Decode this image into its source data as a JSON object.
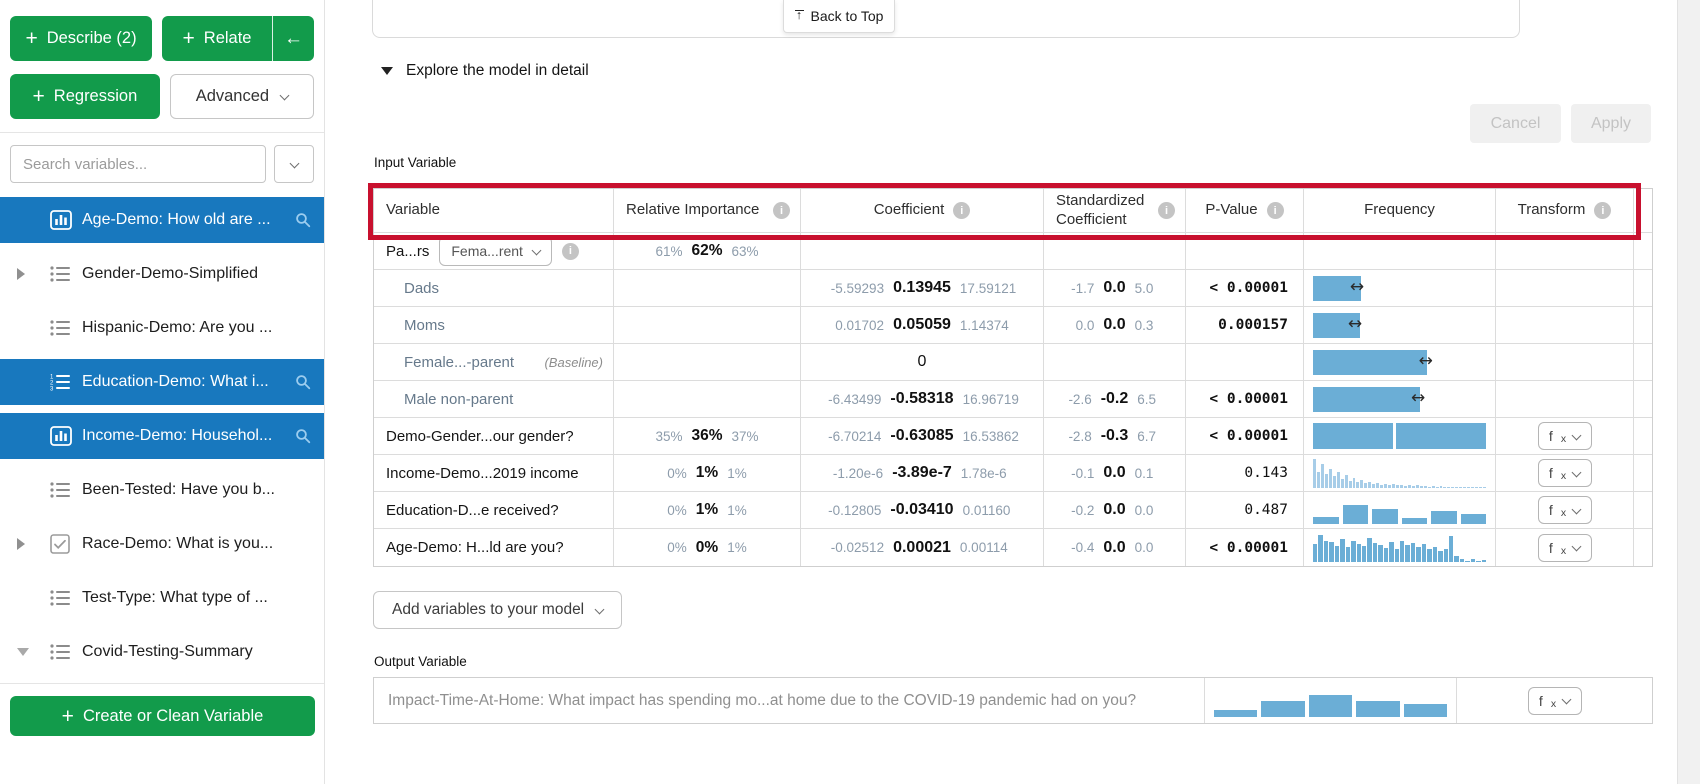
{
  "icons": {
    "plus": "+",
    "left_arrow": "←",
    "up_arrow": "↑",
    "double_arrow": "↔",
    "info": "i"
  },
  "sidebar": {
    "describe_label": "Describe (2)",
    "relate_label": "Relate",
    "regression_label": "Regression",
    "advanced_label": "Advanced",
    "search_placeholder": "Search variables...",
    "create_label": "Create or Clean Variable",
    "items": [
      {
        "label": "Age-Demo: How old are ..."
      },
      {
        "label": "Gender-Demo-Simplified"
      },
      {
        "label": "Hispanic-Demo: Are you ..."
      },
      {
        "label": "Education-Demo: What i..."
      },
      {
        "label": "Income-Demo: Househol..."
      },
      {
        "label": "Been-Tested: Have you b..."
      },
      {
        "label": "Race-Demo: What is you..."
      },
      {
        "label": "Test-Type: What type of ..."
      },
      {
        "label": "Covid-Testing-Summary"
      }
    ]
  },
  "header": {
    "back_to_top": "Back to Top",
    "section_title": "Explore the model in detail",
    "cancel_label": "Cancel",
    "apply_label": "Apply"
  },
  "table": {
    "section_label": "Input Variable",
    "fx": {
      "f": "f",
      "x": "x"
    },
    "columns": [
      "Variable",
      "Relative Importance",
      "Coefficient",
      "Standardized Coefficient",
      "P-Value",
      "Frequency",
      "Transform"
    ],
    "rows": [
      {
        "variable": "Pa...rs",
        "dropdown_value": "Fema...rent",
        "rel": {
          "low": "61%",
          "mid": "62%",
          "high": "63%"
        }
      },
      {
        "variable": "Dads",
        "coef": {
          "low": "-5.59293",
          "mid": "0.13945",
          "high": "17.59121"
        },
        "std": {
          "low": "-1.7",
          "mid": "0.0",
          "high": "5.0"
        },
        "p_value": "< 0.00001",
        "freq": {
          "kind": "bar",
          "bar_pct": 28,
          "arrow_pct": 24
        }
      },
      {
        "variable": "Moms",
        "coef": {
          "low": "0.01702",
          "mid": "0.05059",
          "high": "1.14374"
        },
        "std": {
          "low": "0.0",
          "mid": "0.0",
          "high": "0.3"
        },
        "p_value": "0.000157",
        "freq": {
          "kind": "bar",
          "bar_pct": 27,
          "arrow_pct": 23
        }
      },
      {
        "variable": "Female...-parent",
        "baseline_label": "(Baseline)",
        "coef_single": "0",
        "freq": {
          "kind": "bar",
          "bar_pct": 66,
          "arrow_pct": 60
        }
      },
      {
        "variable": "Male non-parent",
        "coef": {
          "low": "-6.43499",
          "mid": "-0.58318",
          "high": "16.96719"
        },
        "std": {
          "low": "-2.6",
          "mid": "-0.2",
          "high": "6.5"
        },
        "p_value": "< 0.00001",
        "freq": {
          "kind": "bar",
          "bar_pct": 62,
          "arrow_pct": 56
        }
      },
      {
        "variable": "Demo-Gender...our gender?",
        "rel": {
          "low": "35%",
          "mid": "36%",
          "high": "37%"
        },
        "coef": {
          "low": "-6.70214",
          "mid": "-0.63085",
          "high": "16.53862"
        },
        "std": {
          "low": "-2.8",
          "mid": "-0.3",
          "high": "6.7"
        },
        "p_value": "< 0.00001",
        "freq": {
          "kind": "split",
          "segments": [
            46,
            52
          ]
        }
      },
      {
        "variable": "Income-Demo...2019 income",
        "rel": {
          "low": "0%",
          "mid": "1%",
          "high": "1%"
        },
        "coef": {
          "low": "-1.20e-6",
          "mid": "-3.89e-7",
          "high": "1.78e-6"
        },
        "std": {
          "low": "-0.1",
          "mid": "0.0",
          "high": "0.1"
        },
        "p_value": "0.143",
        "freq": {
          "kind": "hist-fine",
          "values": [
            100,
            55,
            80,
            45,
            65,
            38,
            52,
            28,
            42,
            22,
            32,
            18,
            26,
            14,
            20,
            11,
            16,
            9,
            13,
            8,
            11,
            7,
            9,
            6,
            8,
            5,
            7,
            4,
            6,
            3,
            5,
            3,
            4,
            2,
            3,
            2,
            2,
            2,
            1,
            2,
            1,
            1,
            1,
            1
          ]
        }
      },
      {
        "variable": "Education-D...e received?",
        "rel": {
          "low": "0%",
          "mid": "1%",
          "high": "1%"
        },
        "coef": {
          "low": "-0.12805",
          "mid": "-0.03410",
          "high": "0.01160"
        },
        "std": {
          "low": "-0.2",
          "mid": "0.0",
          "high": "0.0"
        },
        "p_value": "0.487",
        "freq": {
          "kind": "bars",
          "values": [
            26,
            68,
            52,
            22,
            48,
            34
          ]
        }
      },
      {
        "variable": "Age-Demo: H...ld are you?",
        "rel": {
          "low": "0%",
          "mid": "0%",
          "high": "1%"
        },
        "coef": {
          "low": "-0.02512",
          "mid": "0.00021",
          "high": "0.00114"
        },
        "std": {
          "low": "-0.4",
          "mid": "0.0",
          "high": "0.0"
        },
        "p_value": "< 0.00001",
        "freq": {
          "kind": "hist-dense",
          "values": [
            62,
            92,
            72,
            70,
            55,
            78,
            52,
            72,
            62,
            55,
            82,
            66,
            58,
            48,
            68,
            45,
            72,
            58,
            66,
            52,
            62,
            45,
            52,
            38,
            45,
            88,
            20,
            12,
            4,
            10,
            2,
            6
          ]
        }
      }
    ]
  },
  "footer": {
    "add_variables_label": "Add variables to your model",
    "output_label": "Output Variable",
    "output_variable_label": "Impact-Time-At-Home: What impact has spending mo...at home due to the COVID-19 pandemic had on you?",
    "output_freq": {
      "kind": "bars",
      "values": [
        20,
        48,
        68,
        48,
        38
      ]
    }
  }
}
